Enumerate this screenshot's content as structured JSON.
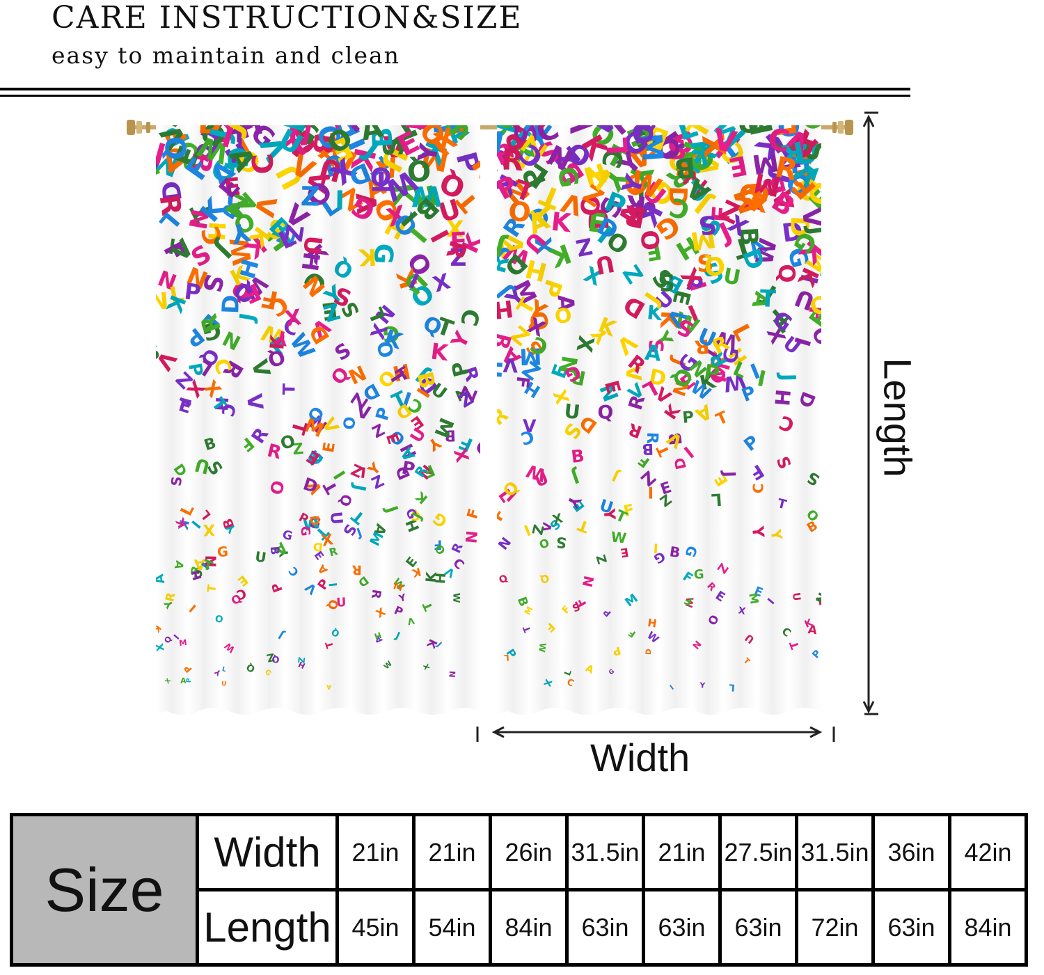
{
  "header": {
    "title": "CARE INSTRUCTION&SIZE",
    "subtitle": "easy to maintain and clean"
  },
  "diagram": {
    "length_label": "Length",
    "width_label": "Width"
  },
  "colors": {
    "table_header_bg": "#b8b8b8",
    "letter_palette": [
      "#e91e8c",
      "#7b2fc9",
      "#1e88e5",
      "#43b02a",
      "#ffd600",
      "#ff6f00",
      "#00acc1",
      "#d81b60",
      "#8e24aa",
      "#2e7d32"
    ]
  },
  "size_table": {
    "header": "Size",
    "rows": [
      {
        "label": "Width",
        "values": [
          "21in",
          "21in",
          "26in",
          "31.5in",
          "21in",
          "27.5in",
          "31.5in",
          "36in",
          "42in"
        ]
      },
      {
        "label": "Length",
        "values": [
          "45in",
          "54in",
          "84in",
          "63in",
          "63in",
          "63in",
          "72in",
          "63in",
          "84in"
        ]
      }
    ]
  }
}
